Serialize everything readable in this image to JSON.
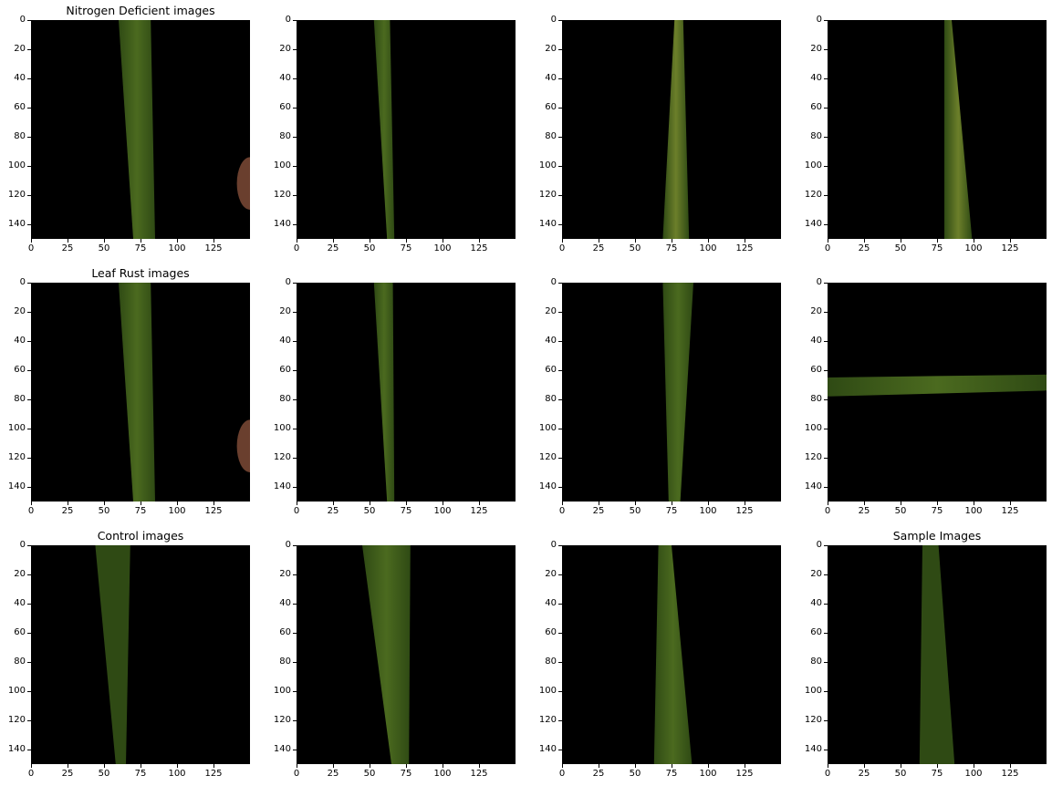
{
  "figure": {
    "rows": 3,
    "cols": 4,
    "titles": [
      {
        "row": 0,
        "col": 0,
        "text": "Nitrogen Deficient images"
      },
      {
        "row": 1,
        "col": 0,
        "text": "Leaf Rust images"
      },
      {
        "row": 2,
        "col": 0,
        "text": "Control images"
      },
      {
        "row": 2,
        "col": 3,
        "text": "Sample Images"
      }
    ],
    "image_size": [
      150,
      150
    ],
    "y_ticks": [
      0,
      20,
      40,
      60,
      80,
      100,
      120,
      140
    ],
    "x_ticks": [
      0,
      25,
      50,
      75,
      100,
      125
    ],
    "colors": {
      "background": "#000000",
      "leaf_dark": "#2f4a14",
      "leaf_mid": "#4b6a1f",
      "leaf_light": "#6c7f2a",
      "blob": "#6a3f2e"
    },
    "panels": [
      {
        "row": 0,
        "col": 0,
        "leaf": [
          [
            60,
            0
          ],
          [
            82,
            0
          ],
          [
            85,
            150
          ],
          [
            70,
            150
          ]
        ],
        "tone": "leaf_mid",
        "blob": true
      },
      {
        "row": 0,
        "col": 1,
        "leaf": [
          [
            53,
            0
          ],
          [
            64,
            0
          ],
          [
            67,
            150
          ],
          [
            62,
            150
          ]
        ],
        "tone": "leaf_mid",
        "blob": false
      },
      {
        "row": 0,
        "col": 2,
        "leaf": [
          [
            77,
            0
          ],
          [
            83,
            0
          ],
          [
            87,
            150
          ],
          [
            69,
            150
          ]
        ],
        "tone": "leaf_light",
        "blob": false
      },
      {
        "row": 0,
        "col": 3,
        "leaf": [
          [
            80,
            0
          ],
          [
            85,
            0
          ],
          [
            99,
            150
          ],
          [
            80,
            150
          ]
        ],
        "tone": "leaf_light",
        "blob": false
      },
      {
        "row": 1,
        "col": 0,
        "leaf": [
          [
            60,
            0
          ],
          [
            82,
            0
          ],
          [
            85,
            150
          ],
          [
            70,
            150
          ]
        ],
        "tone": "leaf_mid",
        "blob": true
      },
      {
        "row": 1,
        "col": 1,
        "leaf": [
          [
            53,
            0
          ],
          [
            66,
            0
          ],
          [
            67,
            150
          ],
          [
            62,
            150
          ]
        ],
        "tone": "leaf_mid",
        "blob": false
      },
      {
        "row": 1,
        "col": 2,
        "leaf": [
          [
            69,
            0
          ],
          [
            90,
            0
          ],
          [
            81,
            150
          ],
          [
            73,
            150
          ]
        ],
        "tone": "leaf_mid",
        "blob": false
      },
      {
        "row": 1,
        "col": 3,
        "leaf": [
          [
            0,
            65
          ],
          [
            150,
            63
          ],
          [
            150,
            74
          ],
          [
            0,
            78
          ]
        ],
        "tone": "leaf_mid",
        "blob": false
      },
      {
        "row": 2,
        "col": 0,
        "leaf": [
          [
            44,
            0
          ],
          [
            68,
            0
          ],
          [
            65,
            150
          ],
          [
            58,
            150
          ]
        ],
        "tone": "leaf_dark",
        "blob": false
      },
      {
        "row": 2,
        "col": 1,
        "leaf": [
          [
            45,
            0
          ],
          [
            78,
            0
          ],
          [
            77,
            150
          ],
          [
            65,
            150
          ]
        ],
        "tone": "leaf_mid",
        "blob": false
      },
      {
        "row": 2,
        "col": 2,
        "leaf": [
          [
            66,
            0
          ],
          [
            75,
            0
          ],
          [
            89,
            150
          ],
          [
            63,
            150
          ]
        ],
        "tone": "leaf_mid",
        "blob": false
      },
      {
        "row": 2,
        "col": 3,
        "leaf": [
          [
            65,
            0
          ],
          [
            76,
            0
          ],
          [
            87,
            150
          ],
          [
            63,
            150
          ]
        ],
        "tone": "leaf_dark",
        "blob": false
      }
    ]
  }
}
